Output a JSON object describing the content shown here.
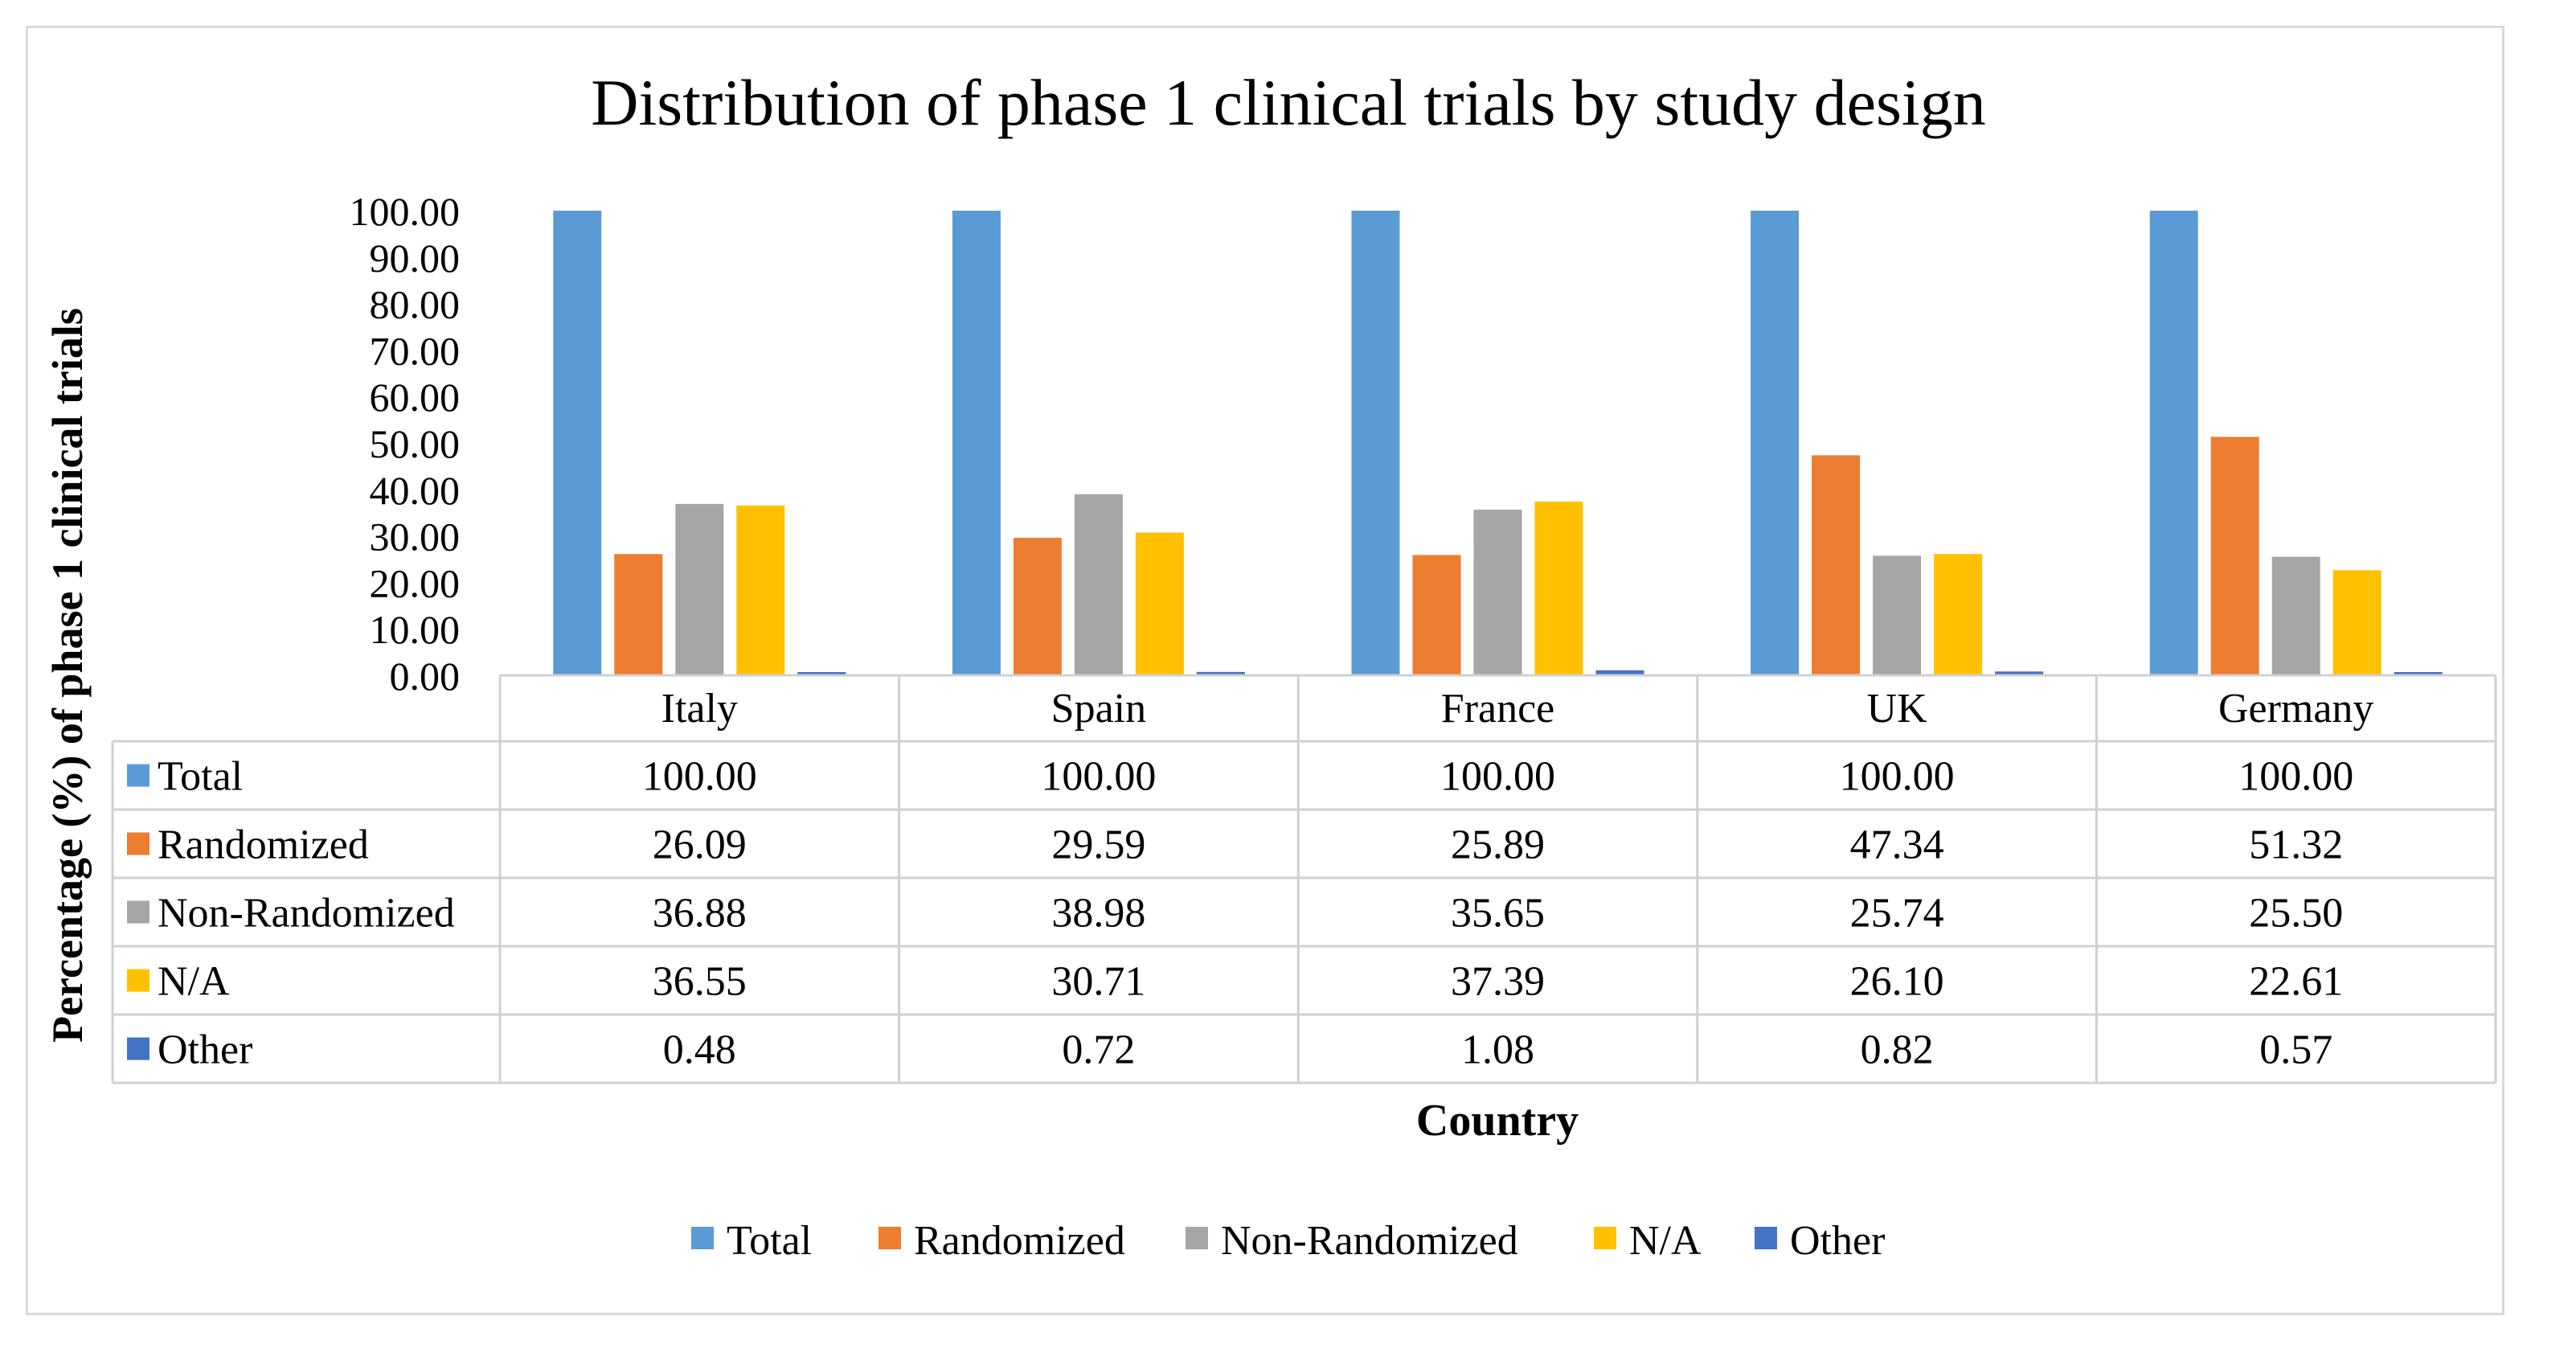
{
  "chart_data": {
    "type": "bar",
    "title": "Distribution of phase 1 clinical trials by study design",
    "xlabel": "Country",
    "ylabel": "Percentage (%) of phase 1 clinical trials",
    "ylim": [
      0,
      100
    ],
    "yticks": [
      "0.00",
      "10.00",
      "20.00",
      "30.00",
      "40.00",
      "50.00",
      "60.00",
      "70.00",
      "80.00",
      "90.00",
      "100.00"
    ],
    "categories": [
      "Italy",
      "Spain",
      "France",
      "UK",
      "Germany"
    ],
    "series": [
      {
        "name": "Total",
        "color": "#5B9BD5",
        "values": [
          100.0,
          100.0,
          100.0,
          100.0,
          100.0
        ],
        "labels": [
          "100.00",
          "100.00",
          "100.00",
          "100.00",
          "100.00"
        ]
      },
      {
        "name": "Randomized",
        "color": "#ED7D31",
        "values": [
          26.09,
          29.59,
          25.89,
          47.34,
          51.32
        ],
        "labels": [
          "26.09",
          "29.59",
          "25.89",
          "47.34",
          "51.32"
        ]
      },
      {
        "name": "Non-Randomized",
        "color": "#A5A5A5",
        "values": [
          36.88,
          38.98,
          35.65,
          25.74,
          25.5
        ],
        "labels": [
          "36.88",
          "38.98",
          "35.65",
          "25.74",
          "25.50"
        ]
      },
      {
        "name": "N/A",
        "color": "#FFC000",
        "values": [
          36.55,
          30.71,
          37.39,
          26.1,
          22.61
        ],
        "labels": [
          "36.55",
          "30.71",
          "37.39",
          "26.10",
          "22.61"
        ]
      },
      {
        "name": "Other",
        "color": "#4472C4",
        "values": [
          0.48,
          0.72,
          1.08,
          0.82,
          0.57
        ],
        "labels": [
          "0.48",
          "0.72",
          "1.08",
          "0.82",
          "0.57"
        ]
      }
    ],
    "legend_position": "bottom",
    "data_table": true
  }
}
